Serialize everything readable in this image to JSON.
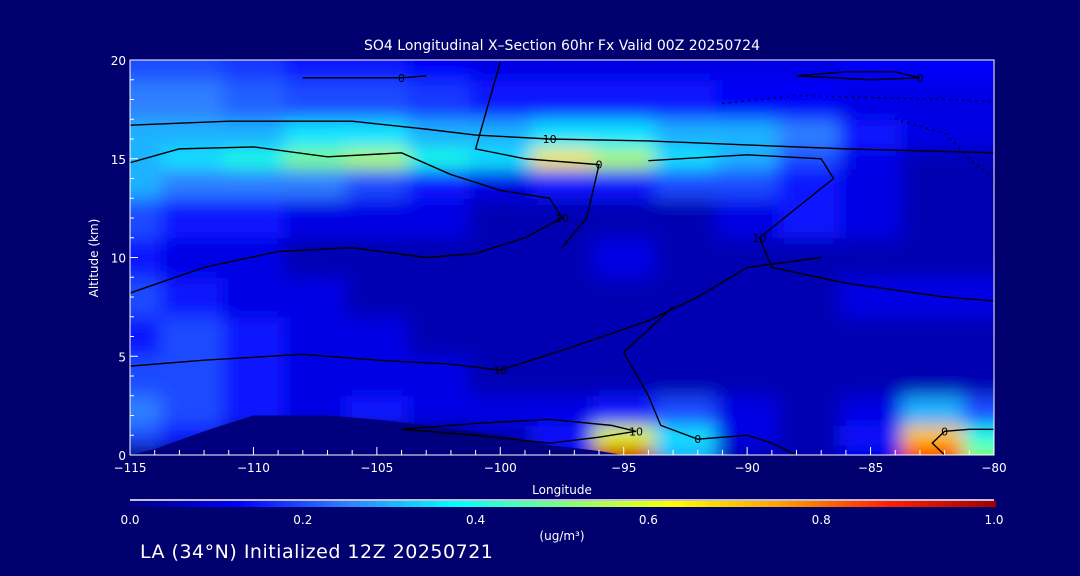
{
  "chart_data": {
    "type": "heatmap",
    "title": "SO4 Longitudinal X–Section 60hr  Fx Valid 00Z 20250724",
    "xlabel": "Longitude",
    "ylabel": "Altitude (km)",
    "xlim": [
      -115,
      -80
    ],
    "ylim": [
      0,
      20
    ],
    "xticks": [
      -115,
      -110,
      -105,
      -100,
      -95,
      -90,
      -85,
      -80
    ],
    "xtick_labels": [
      "−115",
      "−110",
      "−105",
      "−100",
      "−95",
      "−90",
      "−85",
      "−80"
    ],
    "yticks": [
      0,
      5,
      10,
      15,
      20
    ],
    "ytick_labels": [
      "0",
      "5",
      "10",
      "15",
      "20"
    ],
    "colorbar": {
      "range": [
        0,
        1
      ],
      "ticks": [
        "0.0",
        "0.2",
        "0.4",
        "0.6",
        "0.8",
        "1.0"
      ],
      "units": "(ug/m³)",
      "colors": [
        "#00007f",
        "#0000ff",
        "#2f7fff",
        "#00ffff",
        "#7fff7f",
        "#ffff00",
        "#ff9f00",
        "#ff2000",
        "#a00000"
      ]
    },
    "grid": {
      "lon": [
        -115,
        -112.5,
        -110,
        -107.5,
        -105,
        -102.5,
        -100,
        -97.5,
        -95,
        -92.5,
        -90,
        -87.5,
        -85,
        -82.5,
        -80
      ],
      "alt": [
        0,
        1,
        2,
        4,
        6,
        8,
        10,
        12,
        14,
        15,
        16,
        18,
        20
      ],
      "values": [
        [
          0,
          0,
          0,
          0,
          0,
          0,
          0,
          0.1,
          0.95,
          0.3,
          0.05,
          0.05,
          0.1,
          0.85,
          0.5
        ],
        [
          0.2,
          0.15,
          0,
          0,
          0,
          0,
          0.05,
          0.15,
          0.6,
          0.35,
          0.1,
          0.05,
          0.15,
          0.7,
          0.4
        ],
        [
          0.25,
          0.2,
          0.15,
          0.1,
          0.15,
          0.1,
          0.1,
          0.1,
          0.15,
          0.2,
          0.1,
          0.05,
          0.1,
          0.3,
          0.2
        ],
        [
          0.2,
          0.2,
          0.15,
          0.1,
          0.1,
          0.1,
          0.05,
          0.05,
          0.05,
          0.05,
          0.05,
          0.05,
          0.05,
          0.05,
          0.05
        ],
        [
          0.15,
          0.2,
          0.15,
          0.1,
          0.1,
          0.05,
          0.05,
          0.05,
          0.05,
          0.05,
          0.05,
          0.05,
          0.05,
          0.05,
          0.05
        ],
        [
          0.2,
          0.15,
          0.1,
          0.1,
          0.05,
          0.05,
          0.05,
          0.05,
          0.05,
          0.05,
          0.05,
          0.05,
          0.1,
          0.1,
          0.1
        ],
        [
          0.15,
          0.1,
          0.1,
          0.05,
          0.05,
          0.05,
          0.05,
          0.05,
          0.1,
          0.05,
          0.05,
          0.05,
          0.05,
          0.05,
          0.05
        ],
        [
          0.2,
          0.15,
          0.15,
          0.1,
          0.1,
          0.1,
          0.05,
          0.05,
          0.05,
          0.05,
          0.1,
          0.15,
          0.1,
          0.05,
          0.05
        ],
        [
          0.3,
          0.25,
          0.25,
          0.25,
          0.2,
          0.15,
          0.1,
          0.15,
          0.15,
          0.2,
          0.2,
          0.15,
          0.1,
          0.05,
          0.05
        ],
        [
          0.3,
          0.35,
          0.4,
          0.5,
          0.55,
          0.4,
          0.35,
          0.65,
          0.55,
          0.35,
          0.3,
          0.2,
          0.1,
          0.05,
          0.05
        ],
        [
          0.3,
          0.3,
          0.3,
          0.35,
          0.35,
          0.3,
          0.3,
          0.35,
          0.35,
          0.3,
          0.3,
          0.25,
          0.15,
          0.1,
          0.1
        ],
        [
          0.25,
          0.25,
          0.22,
          0.2,
          0.2,
          0.18,
          0.15,
          0.15,
          0.15,
          0.15,
          0.12,
          0.12,
          0.1,
          0.1,
          0.1
        ],
        [
          0.2,
          0.2,
          0.18,
          0.15,
          0.15,
          0.12,
          0.1,
          0.1,
          0.1,
          0.1,
          0.1,
          0.1,
          0.12,
          0.12,
          0.12
        ]
      ]
    },
    "terrain": [
      [
        -115,
        0
      ],
      [
        -114,
        0.3
      ],
      [
        -112,
        1.2
      ],
      [
        -110,
        2.0
      ],
      [
        -107,
        2.0
      ],
      [
        -105,
        1.8
      ],
      [
        -103,
        1.5
      ],
      [
        -100,
        1.0
      ],
      [
        -98,
        0.5
      ],
      [
        -96,
        0.2
      ],
      [
        -95,
        0
      ],
      [
        -80,
        0
      ]
    ],
    "contours": [
      {
        "label": "10",
        "style": "solid",
        "points": [
          [
            -115,
            16.7
          ],
          [
            -111,
            16.9
          ],
          [
            -106,
            16.9
          ],
          [
            -103,
            16.5
          ],
          [
            -101,
            16.2
          ],
          [
            -98,
            16.0
          ],
          [
            -94,
            15.9
          ],
          [
            -90,
            15.7
          ],
          [
            -86,
            15.5
          ],
          [
            -83,
            15.4
          ],
          [
            -80,
            15.3
          ]
        ]
      },
      {
        "label": "10",
        "style": "solid",
        "points": [
          [
            -115,
            14.8
          ],
          [
            -113,
            15.5
          ],
          [
            -110,
            15.6
          ],
          [
            -107,
            15.1
          ],
          [
            -104,
            15.3
          ],
          [
            -102,
            14.2
          ],
          [
            -100,
            13.4
          ],
          [
            -98,
            13.0
          ],
          [
            -97.5,
            12.0
          ],
          [
            -99,
            11.0
          ],
          [
            -101,
            10.2
          ],
          [
            -103,
            10.0
          ],
          [
            -106,
            10.5
          ],
          [
            -109,
            10.3
          ],
          [
            -112,
            9.5
          ],
          [
            -115,
            8.2
          ]
        ]
      },
      {
        "label": "0",
        "style": "solid",
        "points": [
          [
            -100,
            19.9
          ],
          [
            -101,
            15.5
          ],
          [
            -99,
            15.0
          ],
          [
            -96,
            14.7
          ],
          [
            -96.5,
            12.0
          ],
          [
            -97.5,
            10.5
          ]
        ]
      },
      {
        "label": "10",
        "style": "solid",
        "points": [
          [
            -94,
            14.9
          ],
          [
            -90,
            15.2
          ],
          [
            -87,
            15.0
          ],
          [
            -86.5,
            14.0
          ],
          [
            -88,
            12.5
          ],
          [
            -89.5,
            11.0
          ],
          [
            -89,
            9.5
          ],
          [
            -86,
            8.7
          ],
          [
            -82,
            8.0
          ],
          [
            -80,
            7.8
          ]
        ]
      },
      {
        "label": "10",
        "style": "solid",
        "points": [
          [
            -115,
            4.5
          ],
          [
            -112,
            4.8
          ],
          [
            -108,
            5.1
          ],
          [
            -105,
            4.8
          ],
          [
            -102,
            4.6
          ],
          [
            -100,
            4.3
          ],
          [
            -97,
            5.5
          ],
          [
            -94,
            6.8
          ],
          [
            -92,
            8.0
          ],
          [
            -90,
            9.5
          ],
          [
            -87,
            10.0
          ]
        ]
      },
      {
        "label": "0",
        "style": "solid",
        "points": [
          [
            -93,
            7.5
          ],
          [
            -95,
            5.2
          ],
          [
            -94,
            3.0
          ],
          [
            -93.5,
            1.5
          ],
          [
            -92,
            0.8
          ],
          [
            -90,
            1.0
          ],
          [
            -89,
            0.6
          ],
          [
            -88,
            0
          ]
        ]
      },
      {
        "label": "10",
        "style": "solid",
        "points": [
          [
            -104,
            1.3
          ],
          [
            -101,
            1.6
          ],
          [
            -98,
            1.8
          ],
          [
            -95.5,
            1.5
          ],
          [
            -94.5,
            1.2
          ],
          [
            -96,
            0.9
          ],
          [
            -98,
            0.6
          ],
          [
            -101,
            1.0
          ],
          [
            -104,
            1.3
          ]
        ]
      },
      {
        "label": "0",
        "style": "solid",
        "points": [
          [
            -82,
            0
          ],
          [
            -82.5,
            0.6
          ],
          [
            -82,
            1.2
          ],
          [
            -81,
            1.3
          ],
          [
            -80,
            1.3
          ]
        ]
      },
      {
        "label": "0",
        "style": "solid",
        "points": [
          [
            -108,
            19.1
          ],
          [
            -104,
            19.1
          ],
          [
            -103,
            19.2
          ]
        ]
      },
      {
        "label": "0",
        "style": "solid",
        "points": [
          [
            -88,
            19.2
          ],
          [
            -86,
            19.4
          ],
          [
            -84,
            19.4
          ],
          [
            -83,
            19.1
          ],
          [
            -85,
            19.0
          ],
          [
            -88,
            19.2
          ]
        ]
      },
      {
        "label": "",
        "style": "dotted",
        "points": [
          [
            -91,
            17.8
          ],
          [
            -88,
            18.2
          ],
          [
            -85,
            18.1
          ],
          [
            -82,
            18.0
          ],
          [
            -80,
            17.9
          ]
        ]
      },
      {
        "label": "",
        "style": "dotted",
        "points": [
          [
            -84,
            17.0
          ],
          [
            -82,
            16.3
          ],
          [
            -81,
            15.0
          ],
          [
            -80,
            14.0
          ]
        ]
      }
    ]
  },
  "footer": {
    "text": "LA (34°N) Initialized 12Z 20250721"
  }
}
